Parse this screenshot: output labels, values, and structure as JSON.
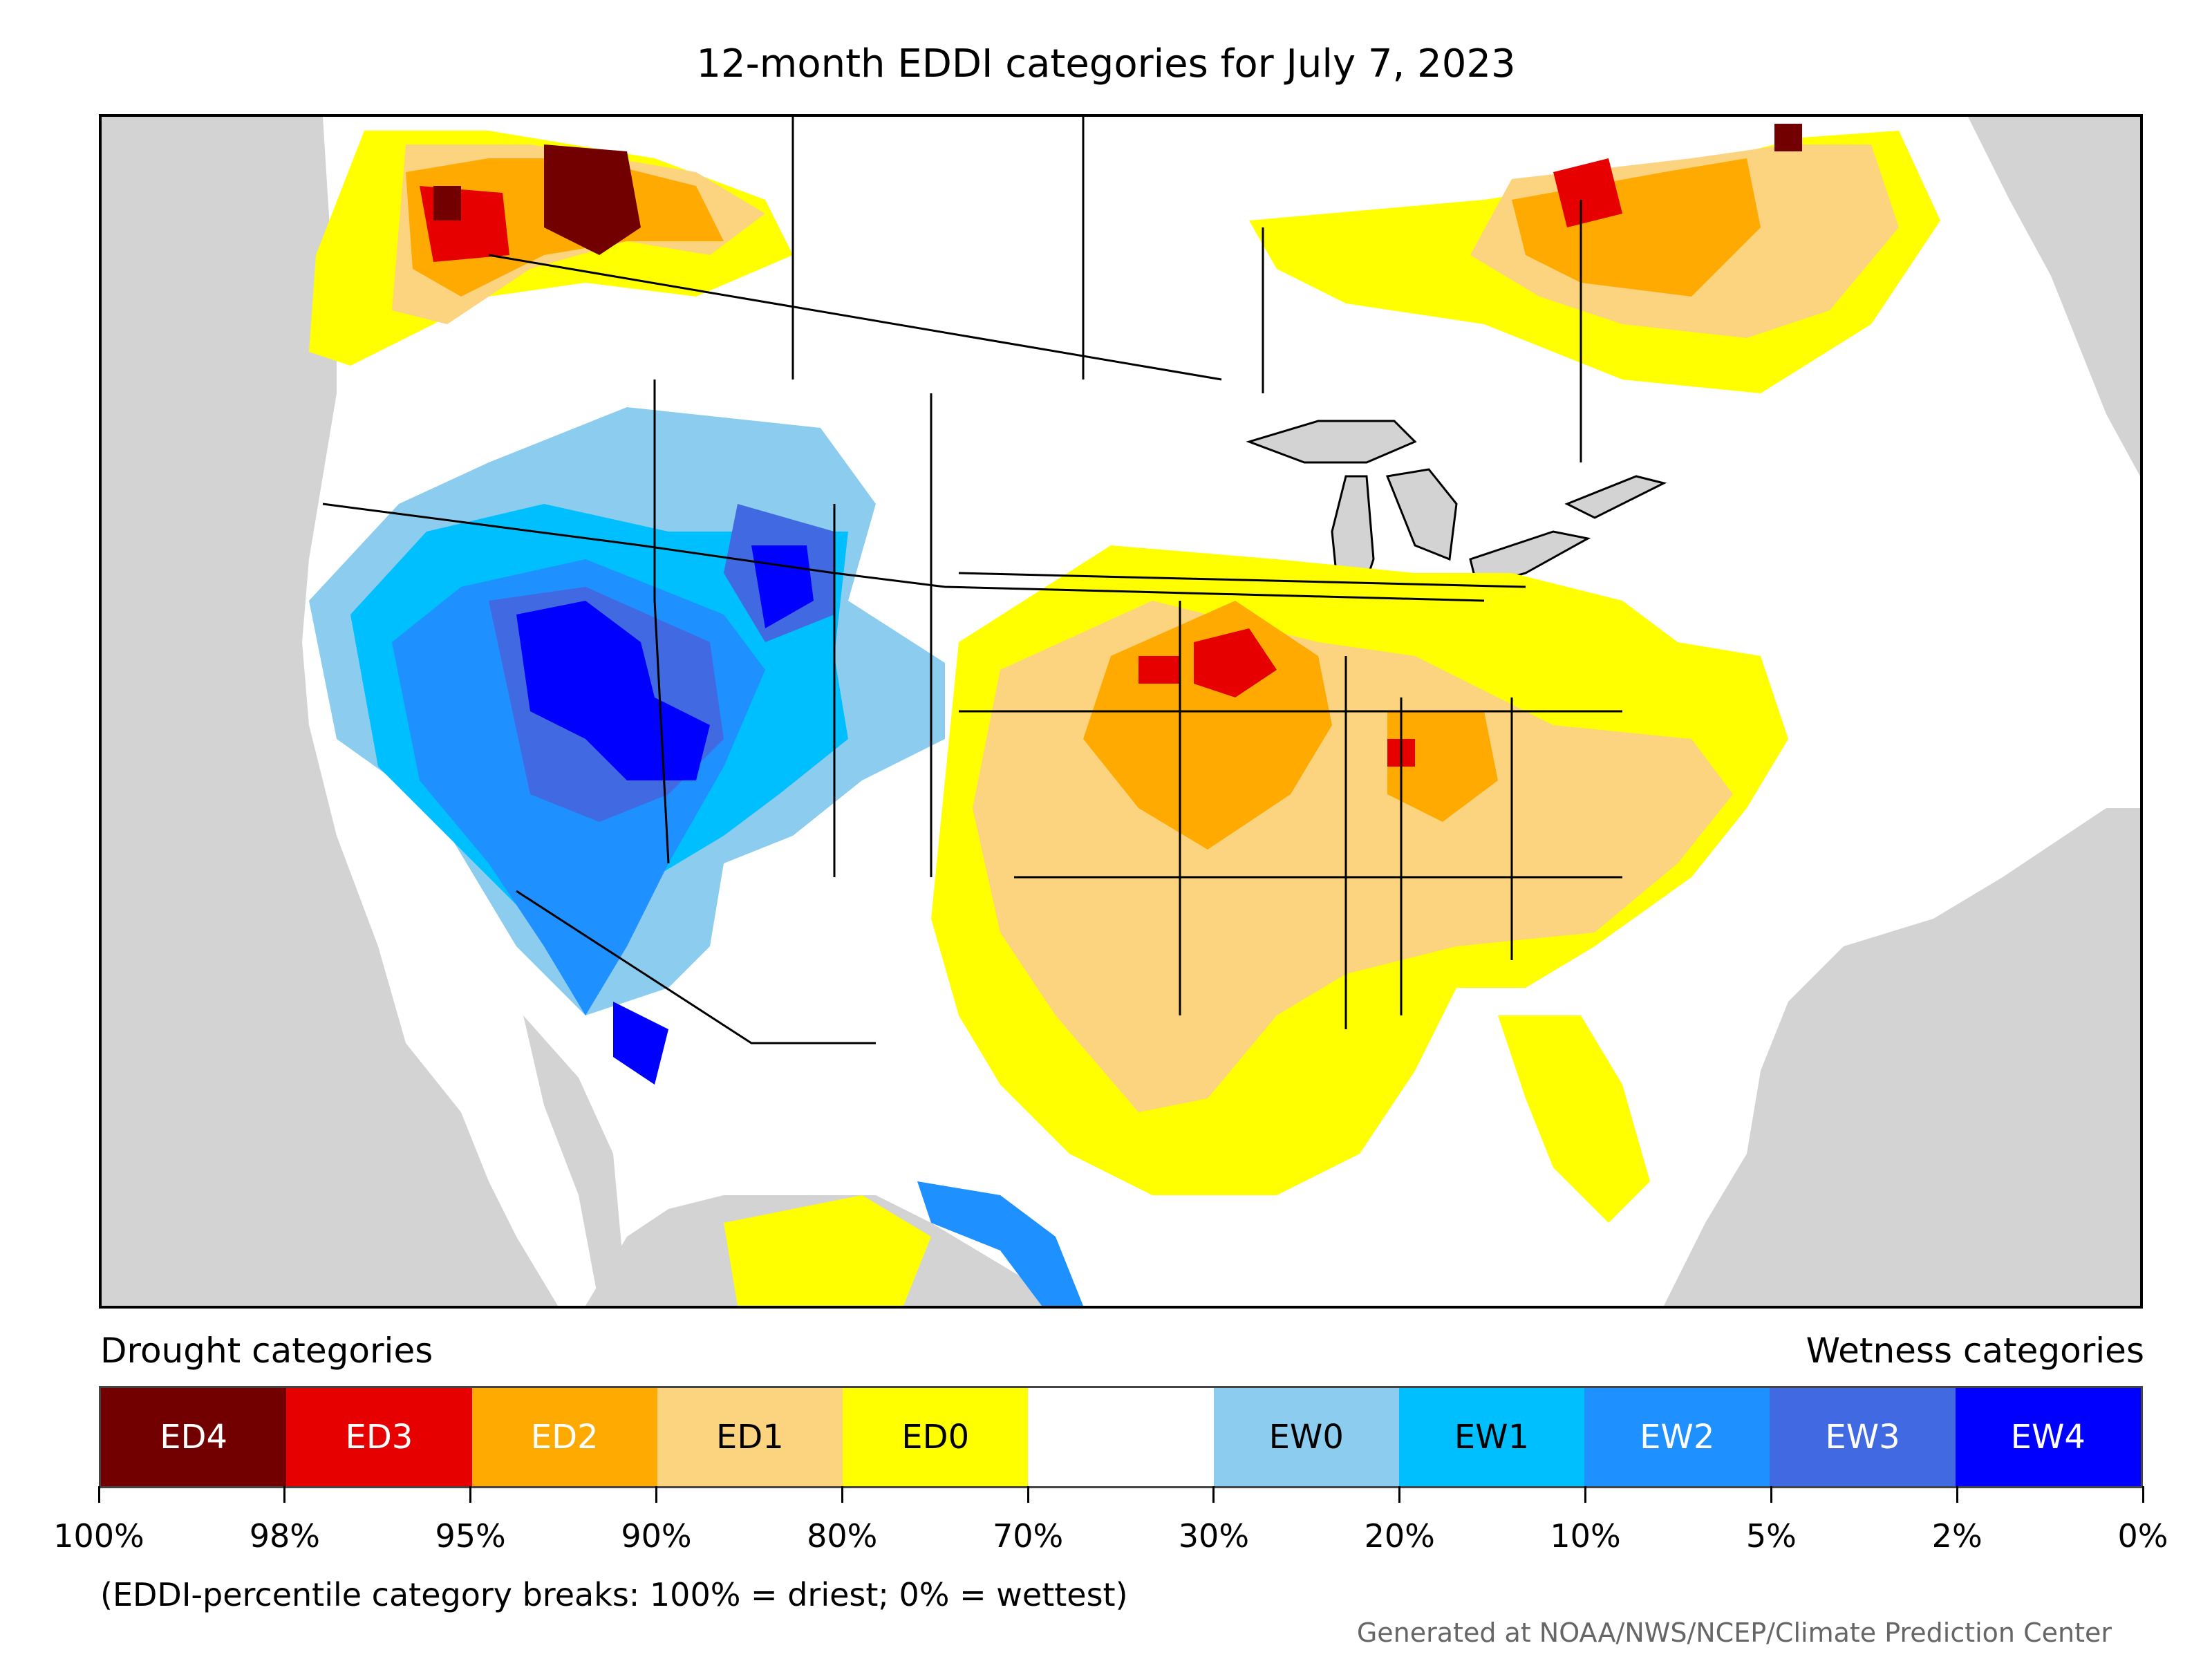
{
  "title": "12-month EDDI categories for July 7, 2023",
  "legend": {
    "left_label": "Drought categories",
    "right_label": "Wetness categories",
    "categories": [
      {
        "label": "ED4",
        "color": "#730000",
        "text_color": "#ffffff"
      },
      {
        "label": "ED3",
        "color": "#e60000",
        "text_color": "#ffffff"
      },
      {
        "label": "ED2",
        "color": "#ffaa00",
        "text_color": "#ffffff"
      },
      {
        "label": "ED1",
        "color": "#fcd37f",
        "text_color": "#000000"
      },
      {
        "label": "ED0",
        "color": "#ffff00",
        "text_color": "#000000"
      },
      {
        "label": "",
        "color": "#ffffff",
        "text_color": "#000000"
      },
      {
        "label": "EW0",
        "color": "#8ccdef",
        "text_color": "#000000"
      },
      {
        "label": "EW1",
        "color": "#00bfff",
        "text_color": "#000000"
      },
      {
        "label": "EW2",
        "color": "#1e90ff",
        "text_color": "#ffffff"
      },
      {
        "label": "EW3",
        "color": "#4169e1",
        "text_color": "#ffffff"
      },
      {
        "label": "EW4",
        "color": "#0000ff",
        "text_color": "#ffffff"
      }
    ],
    "tick_labels": [
      "100%",
      "98%",
      "95%",
      "90%",
      "80%",
      "70%",
      "30%",
      "20%",
      "10%",
      "5%",
      "2%",
      "0%"
    ]
  },
  "note": "(EDDI-percentile category breaks: 100% = driest; 0% = wettest)",
  "credit": "Generated at NOAA/NWS/NCEP/Climate Prediction Center",
  "map": {
    "ocean_color": "#d3d3d3",
    "land_color": "#ffffff"
  }
}
